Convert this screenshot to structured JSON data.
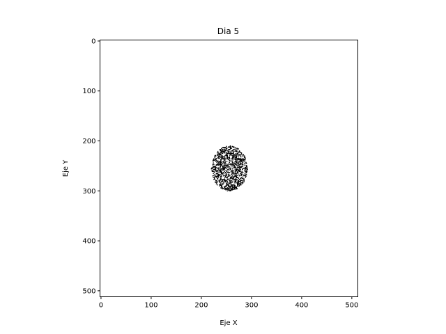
{
  "chart_data": {
    "type": "scatter",
    "title": "Dia 5",
    "xlabel": "Eje X",
    "ylabel": "Eje Y",
    "xlim": [
      -2,
      512
    ],
    "ylim": [
      512,
      -2
    ],
    "y_inverted": true,
    "xticks": [
      0,
      100,
      200,
      300,
      400,
      500
    ],
    "yticks": [
      0,
      100,
      200,
      300,
      400,
      500
    ],
    "grid": false,
    "marker_color": "#000000",
    "cluster": {
      "x_range": [
        220,
        292
      ],
      "y_range": [
        210,
        300
      ],
      "center": [
        256,
        255
      ],
      "approx_point_count": 1100
    }
  }
}
